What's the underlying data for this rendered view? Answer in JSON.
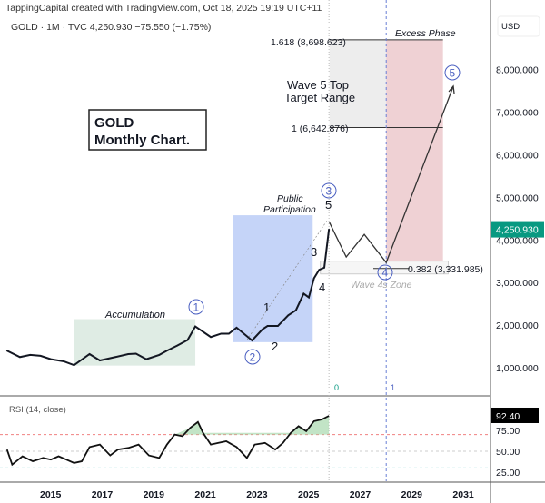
{
  "header": {
    "attribution": "TappingCapital created with TradingView.com, Oct 18, 2025 19:19 UTC+11",
    "symbol_line": "GOLD · 1M · TVC  4,250.930  −75.550 (−1.75%)",
    "currency": "USD"
  },
  "chart_data": {
    "type": "line",
    "title": "GOLD Monthly Chart.",
    "title_lines": [
      "GOLD",
      "Monthly Chart."
    ],
    "yaxis_ticks": [
      "1,000.000",
      "2,000.000",
      "3,000.000",
      "4,000.000",
      "5,000.000",
      "6,000.000",
      "7,000.000",
      "8,000.000"
    ],
    "ytick_values": [
      1000,
      2000,
      3000,
      4000,
      5000,
      6000,
      7000,
      8000
    ],
    "xaxis_ticks": [
      "2015",
      "2017",
      "2019",
      "2021",
      "2023",
      "2025",
      "2027",
      "2029",
      "2031"
    ],
    "xtick_values": [
      2015,
      2017,
      2019,
      2021,
      2023,
      2025,
      2027,
      2029,
      2031
    ],
    "last_price": "4,250.930",
    "price_series": {
      "name": "GOLD",
      "x": [
        2013.3,
        2013.8,
        2014.2,
        2014.6,
        2015.0,
        2015.5,
        2015.9,
        2016.5,
        2016.9,
        2017.5,
        2018.0,
        2018.3,
        2018.7,
        2019.2,
        2019.5,
        2019.9,
        2020.3,
        2020.6,
        2021.2,
        2021.6,
        2021.9,
        2022.2,
        2022.8,
        2023.2,
        2023.4,
        2023.8,
        2024.2,
        2024.5,
        2024.8,
        2025.0,
        2025.2,
        2025.4,
        2025.6,
        2025.78
      ],
      "y": [
        1400,
        1250,
        1300,
        1280,
        1200,
        1150,
        1060,
        1320,
        1170,
        1250,
        1320,
        1330,
        1200,
        1300,
        1400,
        1520,
        1650,
        1970,
        1720,
        1800,
        1800,
        1940,
        1640,
        1900,
        1980,
        1980,
        2230,
        2350,
        2740,
        2650,
        3100,
        3300,
        3350,
        4250
      ]
    },
    "projection": {
      "x": [
        2025.8,
        2026.45,
        2027.15,
        2028.0,
        2030.6
      ],
      "y": [
        4410,
        3600,
        4130,
        3470,
        7610
      ]
    },
    "rsi": {
      "label": "RSI (14, close)",
      "value": "92.40",
      "ticks": [
        "75.00",
        "50.00",
        "25.00"
      ],
      "tick_values": [
        75,
        50,
        25
      ],
      "upper": 70,
      "lower": 30,
      "x": [
        2013.3,
        2013.5,
        2013.9,
        2014.3,
        2014.7,
        2015.0,
        2015.3,
        2015.6,
        2015.9,
        2016.2,
        2016.5,
        2016.9,
        2017.3,
        2017.6,
        2018.0,
        2018.4,
        2018.8,
        2019.2,
        2019.5,
        2019.8,
        2020.1,
        2020.4,
        2020.7,
        2020.9,
        2021.2,
        2021.5,
        2021.8,
        2022.2,
        2022.6,
        2022.9,
        2023.3,
        2023.7,
        2024.0,
        2024.3,
        2024.6,
        2024.9,
        2025.2,
        2025.5,
        2025.78
      ],
      "y": [
        52,
        34,
        44,
        38,
        42,
        40,
        44,
        40,
        36,
        38,
        55,
        58,
        45,
        52,
        54,
        58,
        45,
        42,
        58,
        70,
        68,
        78,
        85,
        72,
        58,
        60,
        62,
        55,
        42,
        58,
        60,
        52,
        60,
        72,
        80,
        74,
        86,
        88,
        92.4
      ]
    }
  },
  "annotations": {
    "accumulation": "Accumulation",
    "public": "Public",
    "participation": "Participation",
    "target_line1": "Wave 5 Top",
    "target_line2": "Target Range",
    "excess": "Excess Phase",
    "fib1618": "1.618 (8,698.623)",
    "fib1": "1 (6,642.876)",
    "fib0382": "0.382 (3,331.985)",
    "wave4zone": "Wave 4s Zone",
    "w1": "1",
    "w2": "2",
    "w3": "3",
    "w4": "4",
    "w5": "5",
    "s1": "1",
    "s2": "2",
    "s3": "3",
    "s4": "4",
    "s5": "5",
    "v0": "0",
    "v1": "1"
  },
  "colors": {
    "candle": "#131722",
    "price_badge": "#089981",
    "accum": "#dfece4",
    "public": "#c5d4f8",
    "target": "#ededed",
    "excess": "#ecc9cd",
    "circle": "#4a5fc1"
  }
}
